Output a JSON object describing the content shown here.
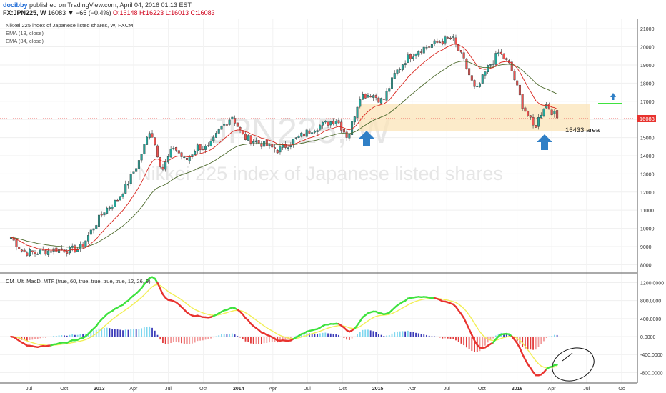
{
  "header": {
    "author": "docibby",
    "published": "published on TradingView.com, April 04, 2016 01:13 EST",
    "symbol": "FX:JPN225, W",
    "change": "16083 ▼ −65 (−0.4%)",
    "ohlc": "O:16148 H:16223 L:16013 C:16083"
  },
  "main": {
    "title": "Nikkei 225 index of Japanese listed shares, W, FXCM",
    "ema13": "EMA (13, close)",
    "ema34": "EMA (34, close)",
    "watermark_symbol": "JPN225, W",
    "watermark_desc": "Nikkei 225 index of Japanese listed shares",
    "price_tag": "16083",
    "area_label": "15433 area"
  },
  "indicator": {
    "title": "CM_Ult_MacD_MTF (true, 60, true, true, true, true, 12, 26, 9)"
  },
  "colors": {
    "up": "#26a69a",
    "down": "#ef5350",
    "ema13": "#d9251d",
    "ema34": "#4e6b2e",
    "zone": "#fbe4b8",
    "arrow": "#2f7fc6",
    "macd_up": "#3ee23e",
    "macd_down": "#e8332f",
    "signal": "#f2ef55"
  },
  "chart_data": {
    "type": "candlestick",
    "title": "Nikkei 225 index of Japanese listed shares, W, FXCM",
    "price_axis": [
      8000,
      9000,
      10000,
      11000,
      12000,
      13000,
      14000,
      15000,
      16000,
      17000,
      18000,
      19000,
      20000,
      21000
    ],
    "ylim": [
      7700,
      21400
    ],
    "x_ticks": [
      "Jul",
      "Oct",
      "2013",
      "Apr",
      "Jul",
      "Oct",
      "2014",
      "Apr",
      "Jul",
      "Oct",
      "2015",
      "Apr",
      "Jul",
      "Oct",
      "2016",
      "Apr",
      "Jul",
      "Oc"
    ],
    "close": [
      {
        "date": "2012-05",
        "value": 9500
      },
      {
        "date": "2012-06",
        "value": 8700
      },
      {
        "date": "2012-07",
        "value": 8650
      },
      {
        "date": "2012-09",
        "value": 8850
      },
      {
        "date": "2012-10",
        "value": 8800
      },
      {
        "date": "2012-11",
        "value": 8950
      },
      {
        "date": "2012-12",
        "value": 10000
      },
      {
        "date": "2013-01",
        "value": 11000
      },
      {
        "date": "2013-02",
        "value": 11500
      },
      {
        "date": "2013-03",
        "value": 12400
      },
      {
        "date": "2013-04",
        "value": 13700
      },
      {
        "date": "2013-05",
        "value": 15500
      },
      {
        "date": "2013-06",
        "value": 13200
      },
      {
        "date": "2013-07",
        "value": 14500
      },
      {
        "date": "2013-08",
        "value": 13700
      },
      {
        "date": "2013-09",
        "value": 14500
      },
      {
        "date": "2013-10",
        "value": 14400
      },
      {
        "date": "2013-11",
        "value": 15500
      },
      {
        "date": "2013-12",
        "value": 16200
      },
      {
        "date": "2014-01",
        "value": 15000
      },
      {
        "date": "2014-02",
        "value": 14800
      },
      {
        "date": "2014-04",
        "value": 14300
      },
      {
        "date": "2014-06",
        "value": 15100
      },
      {
        "date": "2014-07",
        "value": 15500
      },
      {
        "date": "2014-09",
        "value": 16000
      },
      {
        "date": "2014-10",
        "value": 15000
      },
      {
        "date": "2014-11",
        "value": 17300
      },
      {
        "date": "2014-12",
        "value": 17400
      },
      {
        "date": "2015-01",
        "value": 17000
      },
      {
        "date": "2015-02",
        "value": 18500
      },
      {
        "date": "2015-03",
        "value": 19300
      },
      {
        "date": "2015-04",
        "value": 19800
      },
      {
        "date": "2015-06",
        "value": 20300
      },
      {
        "date": "2015-07",
        "value": 20500
      },
      {
        "date": "2015-08",
        "value": 19200
      },
      {
        "date": "2015-09",
        "value": 17500
      },
      {
        "date": "2015-10",
        "value": 18800
      },
      {
        "date": "2015-11",
        "value": 19700
      },
      {
        "date": "2015-12",
        "value": 18900
      },
      {
        "date": "2016-01",
        "value": 16800
      },
      {
        "date": "2016-02",
        "value": 15500
      },
      {
        "date": "2016-03",
        "value": 16900
      },
      {
        "date": "2016-04",
        "value": 16083
      }
    ],
    "indicator": {
      "name": "CM_Ult_MacD_MTF",
      "axis": [
        1200000,
        800000,
        400000,
        0,
        -400000,
        -800000
      ],
      "axis_labels": [
        "1200.0000",
        "800.0000",
        "400.0000",
        "0.0000",
        "-400.0000",
        "-800.0000"
      ],
      "ylim": [
        -1000000,
        1350000
      ]
    },
    "annotations": [
      "15433 area"
    ],
    "grid": true
  }
}
